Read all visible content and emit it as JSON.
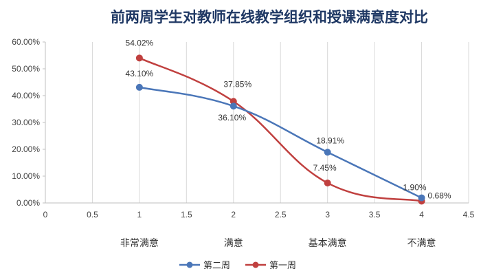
{
  "chart_data": {
    "type": "line",
    "title": "前两周学生对教师在线教学组织和授课满意度对比",
    "xlim": [
      0,
      4.5
    ],
    "ylim": [
      0,
      60
    ],
    "x_ticks": [
      "0",
      "0.5",
      "1",
      "1.5",
      "2",
      "2.5",
      "3",
      "3.5",
      "4",
      "4.5"
    ],
    "y_ticks": [
      "0.00%",
      "10.00%",
      "20.00%",
      "30.00%",
      "40.00%",
      "50.00%",
      "60.00%"
    ],
    "categories": [
      "非常满意",
      "满意",
      "基本满意",
      "不满意"
    ],
    "x": [
      1,
      2,
      3,
      4
    ],
    "series": [
      {
        "name": "第二周",
        "color": "#4a76b8",
        "values": [
          43.1,
          36.1,
          18.91,
          1.9
        ],
        "labels": [
          "43.10%",
          "36.10%",
          "18.91%",
          "1.90%"
        ]
      },
      {
        "name": "第一周",
        "color": "#c0403f",
        "values": [
          54.02,
          37.85,
          7.45,
          0.68
        ],
        "labels": [
          "54.02%",
          "37.85%",
          "7.45%",
          "0.68%"
        ]
      }
    ],
    "grid": "vertical",
    "legend": "bottom"
  }
}
